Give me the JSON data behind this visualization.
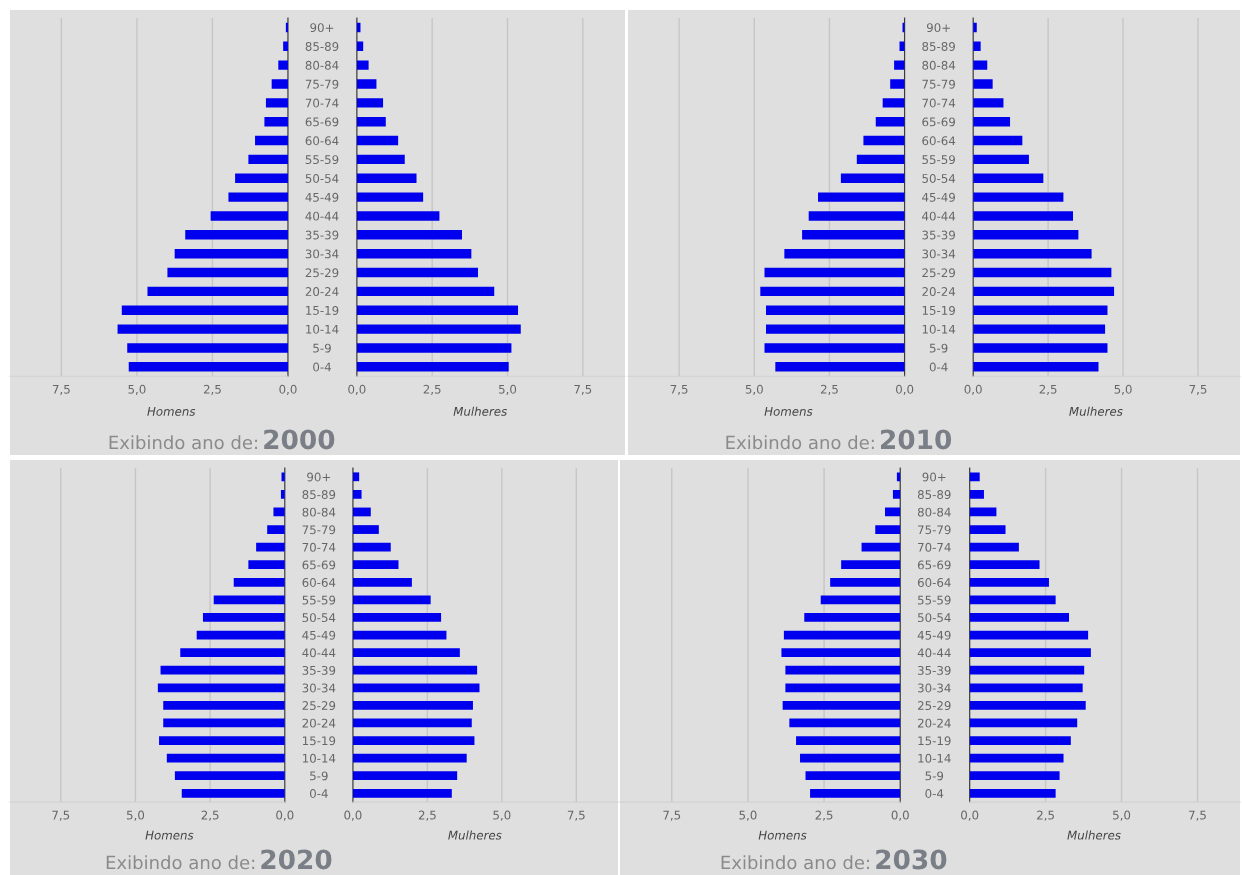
{
  "chart_data": [
    {
      "type": "bar",
      "orientation": "horizontal",
      "categories": [
        "90+",
        "85-89",
        "80-84",
        "75-79",
        "70-74",
        "65-69",
        "60-64",
        "55-59",
        "50-54",
        "45-49",
        "40-44",
        "35-39",
        "30-34",
        "25-29",
        "20-24",
        "15-19",
        "10-14",
        "5-9",
        "0-4"
      ],
      "values": [
        0.07,
        0.16,
        0.32,
        0.54,
        0.73,
        0.78,
        1.09,
        1.31,
        1.75,
        1.97,
        2.56,
        3.4,
        3.75,
        3.99,
        4.65,
        5.5,
        5.64,
        5.32,
        5.27
      ],
      "color": "#0000ee",
      "xlim": [
        9.2,
        0
      ],
      "xticks": [
        {
          "value": 7.5,
          "label": "7,5"
        },
        {
          "value": 5,
          "label": "5,0"
        },
        {
          "value": 2.5,
          "label": "2,5"
        },
        {
          "value": 0,
          "label": "0,0"
        }
      ],
      "xlabel": "Homens",
      "grid": "x",
      "title": "Exibindo ano de:",
      "subtitle": "2000"
    },
    {
      "type": "bar",
      "orientation": "horizontal",
      "categories": [
        null,
        null,
        null,
        null,
        null,
        null,
        null,
        null,
        null,
        null,
        null,
        null,
        null,
        null,
        null,
        null,
        null,
        null,
        null
      ],
      "values": [
        0.12,
        0.21,
        0.39,
        0.65,
        0.87,
        0.96,
        1.37,
        1.59,
        1.98,
        2.2,
        2.74,
        3.49,
        3.8,
        4.02,
        4.56,
        5.35,
        5.44,
        5.13,
        5.04
      ],
      "color": "#0000ee",
      "xlim": [
        0,
        8.9
      ],
      "xticks": [
        {
          "value": 0,
          "label": "0,0"
        },
        {
          "value": 2.5,
          "label": "2,5"
        },
        {
          "value": 5,
          "label": "5,0"
        },
        {
          "value": 7.5,
          "label": "7,5"
        }
      ],
      "xlabel": "Mulheres",
      "grid": "x"
    },
    {
      "type": "bar",
      "orientation": "horizontal",
      "categories": [
        "90+",
        "85-89",
        "80-84",
        "75-79",
        "70-74",
        "65-69",
        "60-64",
        "55-59",
        "50-54",
        "45-49",
        "40-44",
        "35-39",
        "30-34",
        "25-29",
        "20-24",
        "15-19",
        "10-14",
        "5-9",
        "0-4"
      ],
      "values": [
        0.07,
        0.17,
        0.35,
        0.48,
        0.73,
        0.96,
        1.37,
        1.59,
        2.12,
        2.88,
        3.19,
        3.41,
        4.0,
        4.66,
        4.8,
        4.61,
        4.61,
        4.66,
        4.3
      ],
      "color": "#0000ee",
      "xlim": [
        9.2,
        0
      ],
      "xticks": [
        {
          "value": 7.5,
          "label": "7,5"
        },
        {
          "value": 5,
          "label": "5,0"
        },
        {
          "value": 2.5,
          "label": "2,5"
        },
        {
          "value": 0,
          "label": "0,0"
        }
      ],
      "xlabel": "Homens",
      "grid": "x",
      "title": "Exibindo ano de:",
      "subtitle": "2010"
    },
    {
      "type": "bar",
      "orientation": "horizontal",
      "categories": [
        null,
        null,
        null,
        null,
        null,
        null,
        null,
        null,
        null,
        null,
        null,
        null,
        null,
        null,
        null,
        null,
        null,
        null,
        null
      ],
      "values": [
        0.12,
        0.25,
        0.47,
        0.65,
        1.01,
        1.23,
        1.64,
        1.86,
        2.34,
        3.01,
        3.33,
        3.51,
        3.95,
        4.61,
        4.7,
        4.48,
        4.4,
        4.48,
        4.18
      ],
      "color": "#0000ee",
      "xlim": [
        0,
        8.9
      ],
      "xticks": [
        {
          "value": 0,
          "label": "0,0"
        },
        {
          "value": 2.5,
          "label": "2,5"
        },
        {
          "value": 5,
          "label": "5,0"
        },
        {
          "value": 7.5,
          "label": "7,5"
        }
      ],
      "xlabel": "Mulheres",
      "grid": "x"
    },
    {
      "type": "bar",
      "orientation": "horizontal",
      "categories": [
        "90+",
        "85-89",
        "80-84",
        "75-79",
        "70-74",
        "65-69",
        "60-64",
        "55-59",
        "50-54",
        "45-49",
        "40-44",
        "35-39",
        "30-34",
        "25-29",
        "20-24",
        "15-19",
        "10-14",
        "5-9",
        "0-4"
      ],
      "values": [
        0.11,
        0.13,
        0.38,
        0.59,
        0.96,
        1.22,
        1.71,
        2.38,
        2.74,
        2.95,
        3.5,
        4.16,
        4.25,
        4.07,
        4.07,
        4.21,
        3.95,
        3.68,
        3.45
      ],
      "color": "#0000ee",
      "xlim": [
        9.2,
        0
      ],
      "xticks": [
        {
          "value": 7.5,
          "label": "7,5"
        },
        {
          "value": 5,
          "label": "5,0"
        },
        {
          "value": 2.5,
          "label": "2,5"
        },
        {
          "value": 0,
          "label": "0,0"
        }
      ],
      "xlabel": "Homens",
      "grid": "x",
      "title": "Exibindo ano de:",
      "subtitle": "2020"
    },
    {
      "type": "bar",
      "orientation": "horizontal",
      "categories": [
        null,
        null,
        null,
        null,
        null,
        null,
        null,
        null,
        null,
        null,
        null,
        null,
        null,
        null,
        null,
        null,
        null,
        null,
        null
      ],
      "values": [
        0.21,
        0.29,
        0.6,
        0.87,
        1.27,
        1.53,
        1.98,
        2.61,
        2.96,
        3.14,
        3.59,
        4.17,
        4.25,
        4.03,
        3.99,
        4.08,
        3.82,
        3.5,
        3.32
      ],
      "color": "#0000ee",
      "xlim": [
        0,
        8.9
      ],
      "xticks": [
        {
          "value": 0,
          "label": "0,0"
        },
        {
          "value": 2.5,
          "label": "2,5"
        },
        {
          "value": 5,
          "label": "5,0"
        },
        {
          "value": 7.5,
          "label": "7,5"
        }
      ],
      "xlabel": "Mulheres",
      "grid": "x"
    },
    {
      "type": "bar",
      "orientation": "horizontal",
      "categories": [
        "90+",
        "85-89",
        "80-84",
        "75-79",
        "70-74",
        "65-69",
        "60-64",
        "55-59",
        "50-54",
        "45-49",
        "40-44",
        "35-39",
        "30-34",
        "25-29",
        "20-24",
        "15-19",
        "10-14",
        "5-9",
        "0-4"
      ],
      "values": [
        0.11,
        0.24,
        0.5,
        0.82,
        1.27,
        1.94,
        2.3,
        2.61,
        3.15,
        3.82,
        3.9,
        3.77,
        3.77,
        3.86,
        3.64,
        3.42,
        3.29,
        3.11,
        2.96
      ],
      "color": "#0000ee",
      "xlim": [
        9.2,
        0
      ],
      "xticks": [
        {
          "value": 7.5,
          "label": "7,5"
        },
        {
          "value": 5,
          "label": "5,0"
        },
        {
          "value": 2.5,
          "label": "2,5"
        },
        {
          "value": 0,
          "label": "0,0"
        }
      ],
      "xlabel": "Homens",
      "grid": "x",
      "title": "Exibindo ano de:",
      "subtitle": "2030"
    },
    {
      "type": "bar",
      "orientation": "horizontal",
      "categories": [
        null,
        null,
        null,
        null,
        null,
        null,
        null,
        null,
        null,
        null,
        null,
        null,
        null,
        null,
        null,
        null,
        null,
        null,
        null
      ],
      "values": [
        0.33,
        0.47,
        0.88,
        1.18,
        1.62,
        2.3,
        2.61,
        2.83,
        3.27,
        3.9,
        3.99,
        3.77,
        3.72,
        3.82,
        3.54,
        3.33,
        3.09,
        2.96,
        2.83
      ],
      "color": "#0000ee",
      "xlim": [
        0,
        8.9
      ],
      "xticks": [
        {
          "value": 0,
          "label": "0,0"
        },
        {
          "value": 2.5,
          "label": "2,5"
        },
        {
          "value": 5,
          "label": "5,0"
        },
        {
          "value": 7.5,
          "label": "7,5"
        }
      ],
      "xlabel": "Mulheres",
      "grid": "x"
    }
  ]
}
